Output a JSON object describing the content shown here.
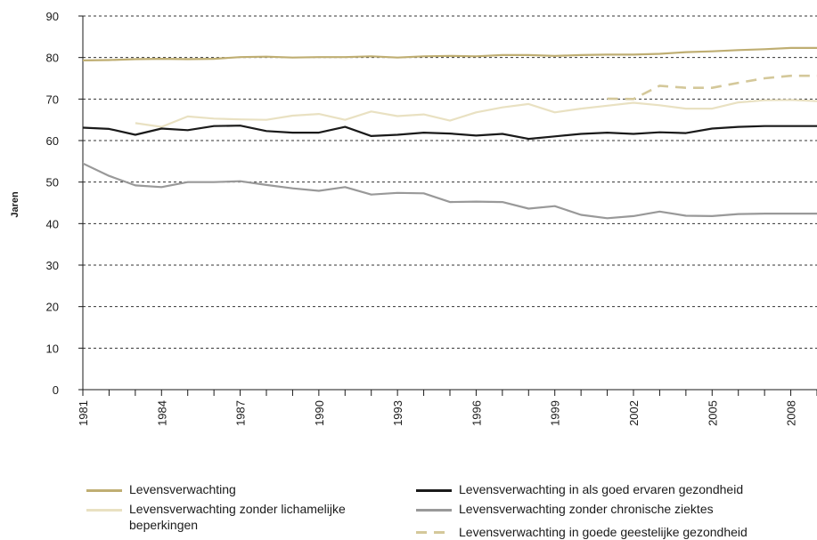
{
  "chart_data": {
    "type": "line",
    "ylabel": "Jaren",
    "xlabel": "",
    "ylim": [
      0,
      90
    ],
    "yticks": [
      0,
      10,
      20,
      30,
      40,
      50,
      60,
      70,
      80,
      90
    ],
    "xlim": [
      1981,
      2009
    ],
    "xticks": [
      1981,
      1984,
      1987,
      1990,
      1993,
      1996,
      1999,
      2002,
      2005,
      2008
    ],
    "xtick_labels": [
      "1981",
      "1984",
      "1987",
      "1990",
      "1993",
      "1996",
      "1999",
      "2002",
      "2005",
      "2008"
    ],
    "grid": "horizontal dashed",
    "legend_position": "bottom",
    "series": [
      {
        "name": "Levensverwachting",
        "color": "#bfae72",
        "style": "solid",
        "x": [
          1980,
          1981,
          1982,
          1983,
          1984,
          1985,
          1986,
          1987,
          1988,
          1989,
          1990,
          1991,
          1992,
          1993,
          1994,
          1995,
          1996,
          1997,
          1998,
          1999,
          2000,
          2001,
          2002,
          2003,
          2004,
          2005,
          2006,
          2007,
          2008,
          2009
        ],
        "y": [
          79.2,
          79.3,
          79.4,
          79.6,
          79.7,
          79.6,
          79.7,
          80.1,
          80.2,
          80.0,
          80.1,
          80.1,
          80.3,
          80.0,
          80.3,
          80.4,
          80.3,
          80.6,
          80.6,
          80.4,
          80.6,
          80.7,
          80.7,
          80.9,
          81.3,
          81.5,
          81.8,
          82.0,
          82.3,
          82.3
        ]
      },
      {
        "name": "Levensverwachting zonder lichamelijke beperkingen",
        "color": "#e9e1c2",
        "style": "solid",
        "x": [
          1983,
          1984,
          1985,
          1986,
          1987,
          1988,
          1989,
          1990,
          1991,
          1992,
          1993,
          1994,
          1995,
          1996,
          1997,
          1998,
          1999,
          2000,
          2001,
          2002,
          2003,
          2004,
          2005,
          2006,
          2007,
          2008,
          2009
        ],
        "y": [
          64.2,
          63.3,
          65.8,
          65.3,
          65.1,
          65.0,
          66.0,
          66.4,
          65.0,
          67.0,
          65.9,
          66.3,
          64.8,
          66.8,
          68.0,
          68.8,
          66.8,
          67.7,
          68.4,
          69.1,
          68.5,
          67.7,
          67.7,
          69.2,
          69.7,
          69.8,
          69.5
        ]
      },
      {
        "name": "Levensverwachting in als goed ervaren gezondheid",
        "color": "#1a1a1a",
        "style": "solid",
        "x": [
          1980,
          1981,
          1982,
          1983,
          1984,
          1985,
          1986,
          1987,
          1988,
          1989,
          1990,
          1991,
          1992,
          1993,
          1994,
          1995,
          1996,
          1997,
          1998,
          1999,
          2000,
          2001,
          2002,
          2003,
          2004,
          2005,
          2006,
          2007,
          2008,
          2009
        ],
        "y": [
          62.3,
          63.1,
          62.8,
          61.4,
          62.9,
          62.5,
          63.5,
          63.6,
          62.3,
          61.9,
          61.9,
          63.3,
          61.1,
          61.4,
          61.9,
          61.7,
          61.2,
          61.6,
          60.4,
          61.0,
          61.6,
          61.9,
          61.6,
          62.0,
          61.8,
          62.9,
          63.3,
          63.5,
          63.5,
          63.5
        ]
      },
      {
        "name": "Levensverwachting zonder chronische ziektes",
        "color": "#999999",
        "style": "solid",
        "x": [
          1980,
          1981,
          1982,
          1983,
          1984,
          1985,
          1986,
          1987,
          1988,
          1989,
          1990,
          1991,
          1992,
          1993,
          1994,
          1995,
          1996,
          1997,
          1998,
          1999,
          2000,
          2001,
          2002,
          2003,
          2004,
          2005,
          2006,
          2007,
          2008,
          2009
        ],
        "y": [
          53.8,
          54.5,
          51.5,
          49.2,
          48.8,
          50.0,
          50.0,
          50.2,
          49.3,
          48.5,
          47.9,
          48.8,
          47.0,
          47.4,
          47.3,
          45.2,
          45.3,
          45.2,
          43.6,
          44.2,
          42.1,
          41.3,
          41.8,
          42.9,
          41.9,
          41.8,
          42.3,
          42.4,
          42.4,
          42.4
        ]
      },
      {
        "name": "Levensverwachting in goede geestelijke gezondheid",
        "color": "#d4c89a",
        "style": "dashed",
        "x": [
          2001,
          2002,
          2003,
          2004,
          2005,
          2006,
          2007,
          2008,
          2009
        ],
        "y": [
          70.1,
          70.0,
          73.2,
          72.7,
          72.7,
          73.9,
          75.0,
          75.6,
          75.6
        ]
      }
    ]
  }
}
